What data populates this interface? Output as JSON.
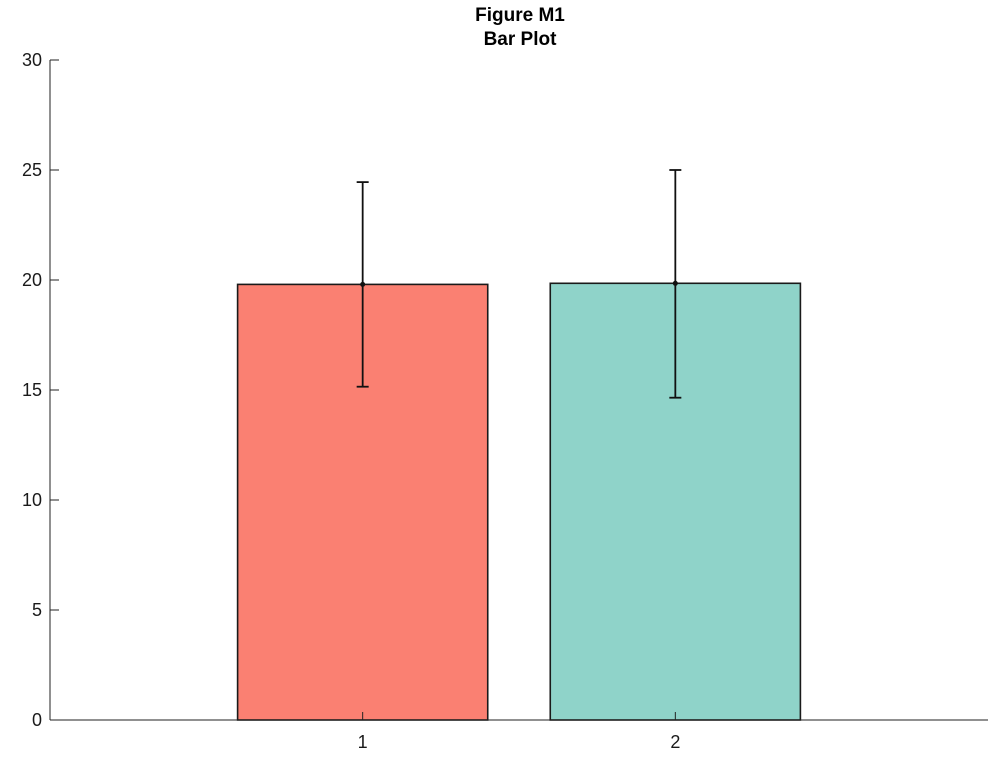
{
  "chart_data": {
    "type": "bar",
    "title": "Figure M1",
    "subtitle": "Bar Plot",
    "categories": [
      "1",
      "2"
    ],
    "values": [
      19.8,
      19.85
    ],
    "error_lower": [
      15.15,
      14.65
    ],
    "error_upper": [
      24.45,
      25.0
    ],
    "bar_colors": [
      "#fa8072",
      "#8fd3c9"
    ],
    "edge_color": "#1a1a1a",
    "xlim": [
      0,
      3
    ],
    "ylim": [
      0,
      30
    ],
    "yticks": [
      0,
      5,
      10,
      15,
      20,
      25,
      30
    ],
    "xlabel": "",
    "ylabel": "",
    "grid": false,
    "legend": "none"
  }
}
